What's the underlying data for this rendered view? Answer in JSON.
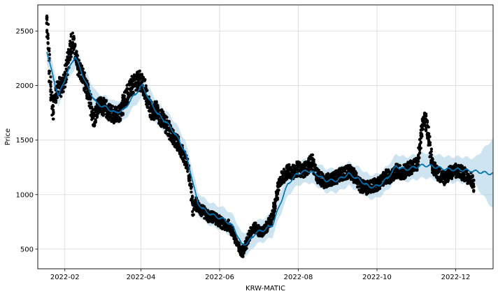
{
  "chart_data": {
    "type": "scatter",
    "title": "",
    "xlabel": "KRW-MATIC",
    "ylabel": "Price",
    "x_ticks": [
      "2022-02",
      "2022-04",
      "2022-06",
      "2022-08",
      "2022-10",
      "2022-12"
    ],
    "y_ticks": [
      500,
      1000,
      1500,
      2000,
      2500
    ],
    "xlim": [
      "2022-01-11",
      "2022-12-30"
    ],
    "ylim": [
      320,
      2740
    ],
    "grid": true,
    "legend": "none",
    "colors": {
      "observed": "#000000",
      "forecast": "#0072B2",
      "interval": "#a6cee3"
    },
    "observed": [
      [
        "2022-01-18",
        2600
      ],
      [
        "2022-01-19",
        2520
      ],
      [
        "2022-01-20",
        2300
      ],
      [
        "2022-01-21",
        2080
      ],
      [
        "2022-01-22",
        1900
      ],
      [
        "2022-01-23",
        1750
      ],
      [
        "2022-01-24",
        1850
      ],
      [
        "2022-01-26",
        1950
      ],
      [
        "2022-01-28",
        2000
      ],
      [
        "2022-01-30",
        1980
      ],
      [
        "2022-02-01",
        2050
      ],
      [
        "2022-02-03",
        2150
      ],
      [
        "2022-02-05",
        2300
      ],
      [
        "2022-02-07",
        2400
      ],
      [
        "2022-02-09",
        2350
      ],
      [
        "2022-02-11",
        2200
      ],
      [
        "2022-02-13",
        2150
      ],
      [
        "2022-02-15",
        2100
      ],
      [
        "2022-02-17",
        2000
      ],
      [
        "2022-02-19",
        1950
      ],
      [
        "2022-02-21",
        1850
      ],
      [
        "2022-02-24",
        1700
      ],
      [
        "2022-02-27",
        1800
      ],
      [
        "2022-03-02",
        1820
      ],
      [
        "2022-03-05",
        1790
      ],
      [
        "2022-03-08",
        1760
      ],
      [
        "2022-03-11",
        1740
      ],
      [
        "2022-03-14",
        1720
      ],
      [
        "2022-03-17",
        1760
      ],
      [
        "2022-03-20",
        1880
      ],
      [
        "2022-03-23",
        1950
      ],
      [
        "2022-03-26",
        2000
      ],
      [
        "2022-03-29",
        2030
      ],
      [
        "2022-04-01",
        2050
      ],
      [
        "2022-04-04",
        1980
      ],
      [
        "2022-04-07",
        1850
      ],
      [
        "2022-04-10",
        1750
      ],
      [
        "2022-04-13",
        1780
      ],
      [
        "2022-04-16",
        1720
      ],
      [
        "2022-04-19",
        1690
      ],
      [
        "2022-04-22",
        1620
      ],
      [
        "2022-04-25",
        1560
      ],
      [
        "2022-04-28",
        1500
      ],
      [
        "2022-05-01",
        1450
      ],
      [
        "2022-05-04",
        1380
      ],
      [
        "2022-05-07",
        1300
      ],
      [
        "2022-05-10",
        1100
      ],
      [
        "2022-05-12",
        850
      ],
      [
        "2022-05-14",
        920
      ],
      [
        "2022-05-17",
        870
      ],
      [
        "2022-05-20",
        840
      ],
      [
        "2022-05-24",
        800
      ],
      [
        "2022-05-28",
        790
      ],
      [
        "2022-06-01",
        760
      ],
      [
        "2022-06-05",
        720
      ],
      [
        "2022-06-09",
        720
      ],
      [
        "2022-06-13",
        620
      ],
      [
        "2022-06-16",
        520
      ],
      [
        "2022-06-19",
        470
      ],
      [
        "2022-06-22",
        540
      ],
      [
        "2022-06-25",
        640
      ],
      [
        "2022-06-28",
        700
      ],
      [
        "2022-07-01",
        680
      ],
      [
        "2022-07-04",
        650
      ],
      [
        "2022-07-07",
        680
      ],
      [
        "2022-07-10",
        740
      ],
      [
        "2022-07-13",
        820
      ],
      [
        "2022-07-16",
        1000
      ],
      [
        "2022-07-19",
        1150
      ],
      [
        "2022-07-22",
        1180
      ],
      [
        "2022-07-25",
        1220
      ],
      [
        "2022-07-28",
        1200
      ],
      [
        "2022-08-01",
        1240
      ],
      [
        "2022-08-05",
        1220
      ],
      [
        "2022-08-09",
        1250
      ],
      [
        "2022-08-12",
        1320
      ],
      [
        "2022-08-15",
        1200
      ],
      [
        "2022-08-18",
        1150
      ],
      [
        "2022-08-22",
        1120
      ],
      [
        "2022-08-26",
        1140
      ],
      [
        "2022-08-30",
        1150
      ],
      [
        "2022-09-03",
        1180
      ],
      [
        "2022-09-07",
        1200
      ],
      [
        "2022-09-11",
        1220
      ],
      [
        "2022-09-15",
        1150
      ],
      [
        "2022-09-19",
        1080
      ],
      [
        "2022-09-23",
        1060
      ],
      [
        "2022-09-27",
        1080
      ],
      [
        "2022-10-01",
        1090
      ],
      [
        "2022-10-05",
        1130
      ],
      [
        "2022-10-09",
        1170
      ],
      [
        "2022-10-13",
        1160
      ],
      [
        "2022-10-17",
        1220
      ],
      [
        "2022-10-21",
        1200
      ],
      [
        "2022-10-25",
        1230
      ],
      [
        "2022-10-29",
        1260
      ],
      [
        "2022-11-02",
        1280
      ],
      [
        "2022-11-05",
        1560
      ],
      [
        "2022-11-07",
        1700
      ],
      [
        "2022-11-09",
        1650
      ],
      [
        "2022-11-11",
        1500
      ],
      [
        "2022-11-13",
        1300
      ],
      [
        "2022-11-15",
        1230
      ],
      [
        "2022-11-19",
        1180
      ],
      [
        "2022-11-23",
        1150
      ],
      [
        "2022-11-27",
        1200
      ],
      [
        "2022-12-01",
        1220
      ],
      [
        "2022-12-05",
        1210
      ],
      [
        "2022-12-09",
        1180
      ],
      [
        "2022-12-13",
        1150
      ],
      [
        "2022-12-16",
        1080
      ]
    ],
    "forecast": [
      [
        "2022-01-18",
        2320
      ],
      [
        "2022-01-22",
        2120
      ],
      [
        "2022-01-27",
        1900
      ],
      [
        "2022-02-01",
        2060
      ],
      [
        "2022-02-06",
        2200
      ],
      [
        "2022-02-09",
        2270
      ],
      [
        "2022-02-14",
        2120
      ],
      [
        "2022-02-20",
        1950
      ],
      [
        "2022-02-26",
        1830
      ],
      [
        "2022-03-05",
        1800
      ],
      [
        "2022-03-12",
        1750
      ],
      [
        "2022-03-19",
        1780
      ],
      [
        "2022-03-26",
        1900
      ],
      [
        "2022-04-02",
        2000
      ],
      [
        "2022-04-07",
        1880
      ],
      [
        "2022-04-14",
        1740
      ],
      [
        "2022-04-21",
        1660
      ],
      [
        "2022-04-28",
        1550
      ],
      [
        "2022-05-05",
        1400
      ],
      [
        "2022-05-10",
        1180
      ],
      [
        "2022-05-15",
        920
      ],
      [
        "2022-05-22",
        840
      ],
      [
        "2022-05-29",
        800
      ],
      [
        "2022-06-05",
        770
      ],
      [
        "2022-06-12",
        700
      ],
      [
        "2022-06-18",
        540
      ],
      [
        "2022-06-23",
        560
      ],
      [
        "2022-06-29",
        650
      ],
      [
        "2022-07-06",
        680
      ],
      [
        "2022-07-12",
        720
      ],
      [
        "2022-07-18",
        920
      ],
      [
        "2022-07-24",
        1100
      ],
      [
        "2022-07-31",
        1190
      ],
      [
        "2022-08-08",
        1220
      ],
      [
        "2022-08-15",
        1190
      ],
      [
        "2022-08-22",
        1130
      ],
      [
        "2022-08-31",
        1130
      ],
      [
        "2022-09-09",
        1190
      ],
      [
        "2022-09-17",
        1140
      ],
      [
        "2022-09-25",
        1070
      ],
      [
        "2022-10-02",
        1080
      ],
      [
        "2022-10-09",
        1150
      ],
      [
        "2022-10-16",
        1260
      ],
      [
        "2022-10-23",
        1230
      ],
      [
        "2022-10-30",
        1250
      ],
      [
        "2022-11-06",
        1270
      ],
      [
        "2022-11-13",
        1260
      ],
      [
        "2022-11-20",
        1240
      ],
      [
        "2022-11-27",
        1230
      ],
      [
        "2022-12-04",
        1230
      ],
      [
        "2022-12-11",
        1220
      ],
      [
        "2022-12-18",
        1210
      ],
      [
        "2022-12-24",
        1200
      ],
      [
        "2022-12-30",
        1190
      ]
    ],
    "interval_half_width": [
      [
        "2022-01-18",
        100
      ],
      [
        "2022-10-01",
        110
      ],
      [
        "2022-12-16",
        120
      ],
      [
        "2022-12-30",
        320
      ]
    ]
  }
}
